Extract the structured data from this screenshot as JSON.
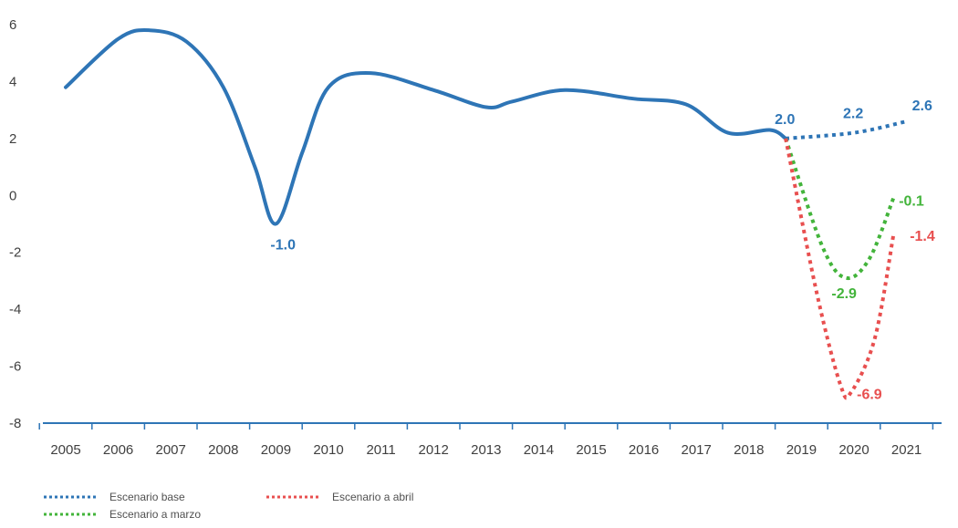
{
  "chart_data": {
    "type": "line",
    "title": "",
    "xlabel": "",
    "ylabel": "",
    "ylim": [
      -8,
      6
    ],
    "y_ticks": [
      6,
      4,
      2,
      0,
      -2,
      -4,
      -6,
      -8
    ],
    "y_tick_labels": [
      "6",
      "4",
      "2",
      "0",
      "-2",
      "-4",
      "-6",
      "-8"
    ],
    "categories": [
      "2005",
      "2006",
      "2007",
      "2008",
      "2009",
      "2010",
      "2011",
      "2012",
      "2013",
      "2014",
      "2015",
      "2016",
      "2017",
      "2018",
      "2019",
      "2020",
      "2021"
    ],
    "grid": false,
    "legend_position": "bottom-left",
    "historical": {
      "color": "#2e75b6",
      "points": [
        {
          "x": 2005.0,
          "y": 3.8
        },
        {
          "x": 2006.0,
          "y": 5.5
        },
        {
          "x": 2006.6,
          "y": 5.8
        },
        {
          "x": 2007.3,
          "y": 5.4
        },
        {
          "x": 2008.0,
          "y": 3.8
        },
        {
          "x": 2008.6,
          "y": 1.0
        },
        {
          "x": 2009.0,
          "y": -1.0
        },
        {
          "x": 2009.5,
          "y": 1.5
        },
        {
          "x": 2010.0,
          "y": 3.8
        },
        {
          "x": 2010.8,
          "y": 4.3
        },
        {
          "x": 2012.0,
          "y": 3.7
        },
        {
          "x": 2013.0,
          "y": 3.1
        },
        {
          "x": 2013.5,
          "y": 3.3
        },
        {
          "x": 2014.5,
          "y": 3.7
        },
        {
          "x": 2015.8,
          "y": 3.4
        },
        {
          "x": 2016.8,
          "y": 3.2
        },
        {
          "x": 2017.6,
          "y": 2.2
        },
        {
          "x": 2018.4,
          "y": 2.3
        },
        {
          "x": 2018.7,
          "y": 2.0
        }
      ]
    },
    "series": [
      {
        "name": "Escenario base",
        "color": "#2e75b6",
        "points": [
          {
            "x": 2018.7,
            "y": 2.0
          },
          {
            "x": 2020.0,
            "y": 2.2
          },
          {
            "x": 2021.0,
            "y": 2.6
          }
        ]
      },
      {
        "name": "Escenario a marzo",
        "color": "#43b43b",
        "points": [
          {
            "x": 2018.7,
            "y": 2.0
          },
          {
            "x": 2019.4,
            "y": -1.8
          },
          {
            "x": 2019.85,
            "y": -2.9
          },
          {
            "x": 2020.3,
            "y": -2.2
          },
          {
            "x": 2020.75,
            "y": -0.1
          }
        ]
      },
      {
        "name": "Escenario a abril",
        "color": "#e84f4f",
        "points": [
          {
            "x": 2018.7,
            "y": 2.0
          },
          {
            "x": 2019.3,
            "y": -3.5
          },
          {
            "x": 2019.75,
            "y": -6.7
          },
          {
            "x": 2019.95,
            "y": -6.9
          },
          {
            "x": 2020.4,
            "y": -5.0
          },
          {
            "x": 2020.75,
            "y": -1.4
          }
        ]
      }
    ],
    "data_labels": [
      {
        "text": "-1.0",
        "x": 2009.0,
        "y": -1.0,
        "color": "#2e75b6"
      },
      {
        "text": "2.0",
        "x": 2018.7,
        "y": 2.0,
        "color": "#2e75b6"
      },
      {
        "text": "2.2",
        "x": 2020.0,
        "y": 2.2,
        "color": "#2e75b6"
      },
      {
        "text": "2.6",
        "x": 2021.0,
        "y": 2.6,
        "color": "#2e75b6"
      },
      {
        "text": "-0.1",
        "x": 2020.75,
        "y": -0.1,
        "color": "#43b43b"
      },
      {
        "text": "-2.9",
        "x": 2019.85,
        "y": -2.9,
        "color": "#43b43b"
      },
      {
        "text": "-1.4",
        "x": 2020.75,
        "y": -1.4,
        "color": "#e84f4f"
      },
      {
        "text": "-6.9",
        "x": 2019.95,
        "y": -6.9,
        "color": "#e84f4f"
      }
    ]
  }
}
